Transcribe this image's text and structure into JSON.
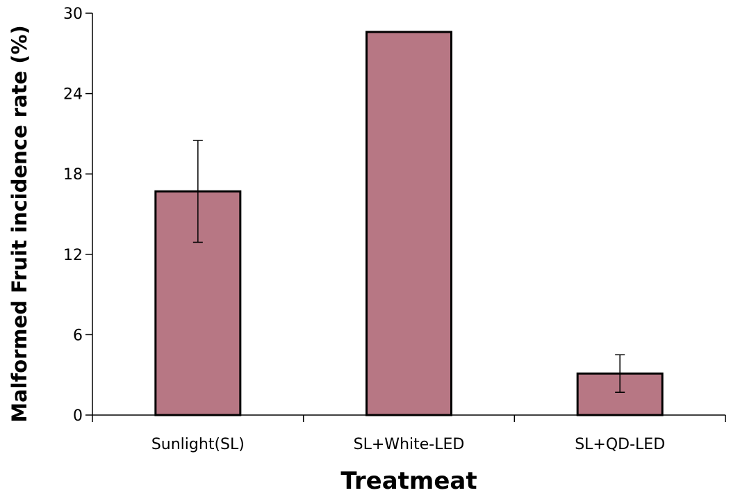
{
  "chart_data": {
    "type": "bar",
    "title": "",
    "xlabel": "Treatmeat",
    "ylabel": "Malformed Fruit incidence rate (%)",
    "categories": [
      "Sunlight(SL)",
      "SL+White-LED",
      "SL+QD-LED"
    ],
    "values": [
      16.7,
      28.6,
      3.1
    ],
    "error": [
      3.8,
      0,
      1.4
    ],
    "ylim": [
      0,
      30
    ],
    "yticks": [
      "0",
      "6",
      "12",
      "18",
      "24",
      "30"
    ],
    "grid": false,
    "legend": "none",
    "colors": {
      "bar": "#b77784",
      "edge": "#000000"
    }
  }
}
